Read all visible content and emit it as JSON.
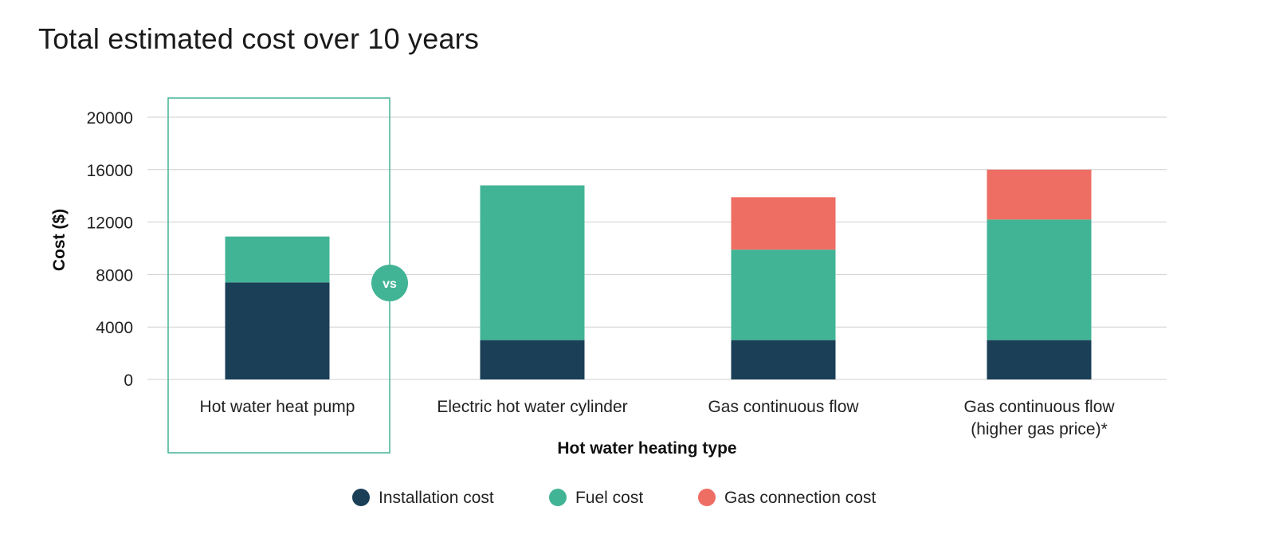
{
  "chart_data": {
    "type": "bar",
    "stacked": true,
    "title": "Total estimated cost over 10 years",
    "xlabel": "Hot water heating type",
    "ylabel": "Cost ($)",
    "ylim": [
      0,
      20000
    ],
    "yticks": [
      0,
      4000,
      8000,
      12000,
      16000,
      20000
    ],
    "grid": true,
    "categories": [
      [
        "Hot water heat pump"
      ],
      [
        "Electric hot water cylinder"
      ],
      [
        "Gas continuous flow"
      ],
      [
        "Gas continuous flow",
        "(higher gas price)*"
      ]
    ],
    "series": [
      {
        "name": "Installation cost",
        "color": "#1a3f57",
        "values": [
          7400,
          3000,
          3000,
          3000
        ]
      },
      {
        "name": "Fuel cost",
        "color": "#42b496",
        "values": [
          3500,
          11800,
          6900,
          9200
        ]
      },
      {
        "name": "Gas connection cost",
        "color": "#ee6e64",
        "values": [
          0,
          0,
          4000,
          3800
        ]
      }
    ],
    "highlight": {
      "category_index": 0,
      "color": "#42b496"
    },
    "comparison_badge": "vs",
    "legend_position": "bottom"
  }
}
